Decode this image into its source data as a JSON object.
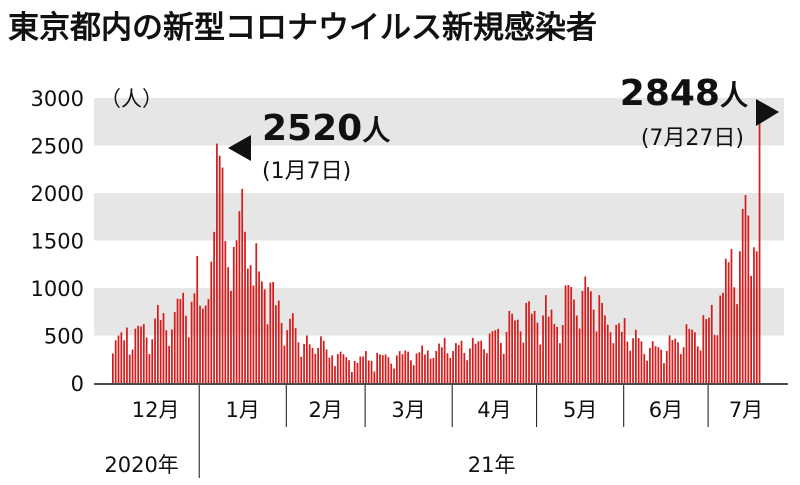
{
  "chart_data": {
    "type": "bar",
    "title": "東京都内の新型コロナウイルス新規感染者",
    "y_unit": "（人）",
    "ylim": [
      0,
      3000
    ],
    "yticks": [
      0,
      500,
      1000,
      1500,
      2000,
      2500,
      3000
    ],
    "grid": "alternating horizontal bands",
    "bar_color": "#d51c1c",
    "band_color": "#e6e6e6",
    "months": [
      "12月",
      "1月",
      "2月",
      "3月",
      "4月",
      "5月",
      "6月",
      "7月"
    ],
    "years": [
      "2020年",
      "21年"
    ],
    "x_start": "2020-12-01",
    "x_end": "2021-07-27",
    "values": [
      311,
      450,
      500,
      533,
      449,
      584,
      299,
      352,
      572,
      602,
      595,
      620,
      480,
      305,
      460,
      678,
      822,
      664,
      736,
      556,
      391,
      563,
      748,
      888,
      884,
      949,
      708,
      481,
      856,
      944,
      1337,
      814,
      783,
      816,
      884,
      1278,
      1591,
      2520,
      2392,
      2268,
      1494,
      1219,
      970,
      1433,
      1502,
      1809,
      2044,
      1592,
      1204,
      1240,
      1026,
      1471,
      1175,
      1070,
      986,
      618,
      1056,
      1064,
      819,
      868,
      633,
      393,
      556,
      676,
      734,
      577,
      429,
      276,
      412,
      500,
      407,
      370,
      307,
      369,
      491,
      445,
      353,
      266,
      291,
      178,
      304,
      330,
      303,
      272,
      240,
      116,
      232,
      213,
      279,
      279,
      337,
      237,
      232,
      121,
      316,
      301,
      293,
      300,
      272,
      204,
      152,
      290,
      335,
      303,
      342,
      330,
      239,
      187,
      312,
      323,
      394,
      300,
      342,
      256,
      264,
      337,
      415,
      376,
      475,
      313,
      264,
      337,
      420,
      399,
      445,
      316,
      240,
      364,
      475,
      414,
      440,
      446,
      355,
      313,
      521,
      545,
      555,
      570,
      421,
      306,
      537,
      759,
      729,
      658,
      667,
      543,
      425,
      843,
      861,
      729,
      759,
      635,
      405,
      711,
      925,
      698,
      773,
      621,
      591,
      419,
      609,
      1027,
      1032,
      1010,
      879,
      710,
      573,
      969,
      1121,
      1010,
      966,
      772,
      542,
      925,
      843,
      712,
      614,
      535,
      419,
      612,
      629,
      539,
      684,
      436,
      340,
      471,
      560,
      472,
      439,
      304,
      235,
      369,
      440,
      388,
      377,
      351,
      209,
      337,
      501,
      452,
      467,
      429,
      304,
      376,
      619,
      570,
      562,
      534,
      386,
      342,
      714,
      673,
      687,
      822,
      507,
      502,
      920,
      950,
      1308,
      1271,
      1410,
      1008,
      830,
      1387,
      1832,
      1979,
      1763,
      1128,
      1429,
      1387,
      2848
    ]
  }
}
